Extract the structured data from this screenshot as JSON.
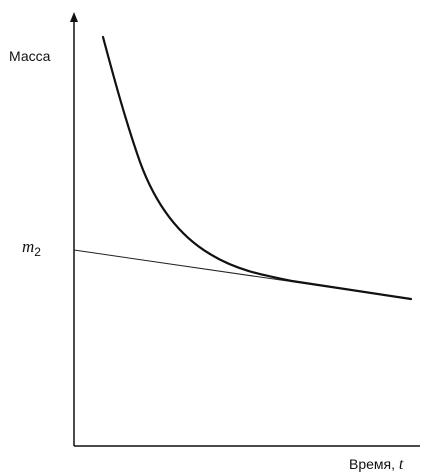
{
  "chart_data": {
    "type": "line",
    "ylabel": "Масса",
    "xlabel_text": "Время, ",
    "xlabel_var": "t",
    "y_marker": {
      "symbol": "m",
      "subscript": "2"
    },
    "colors": {
      "axis": "#111111",
      "curve": "#111111",
      "tangent": "#222222"
    }
  }
}
